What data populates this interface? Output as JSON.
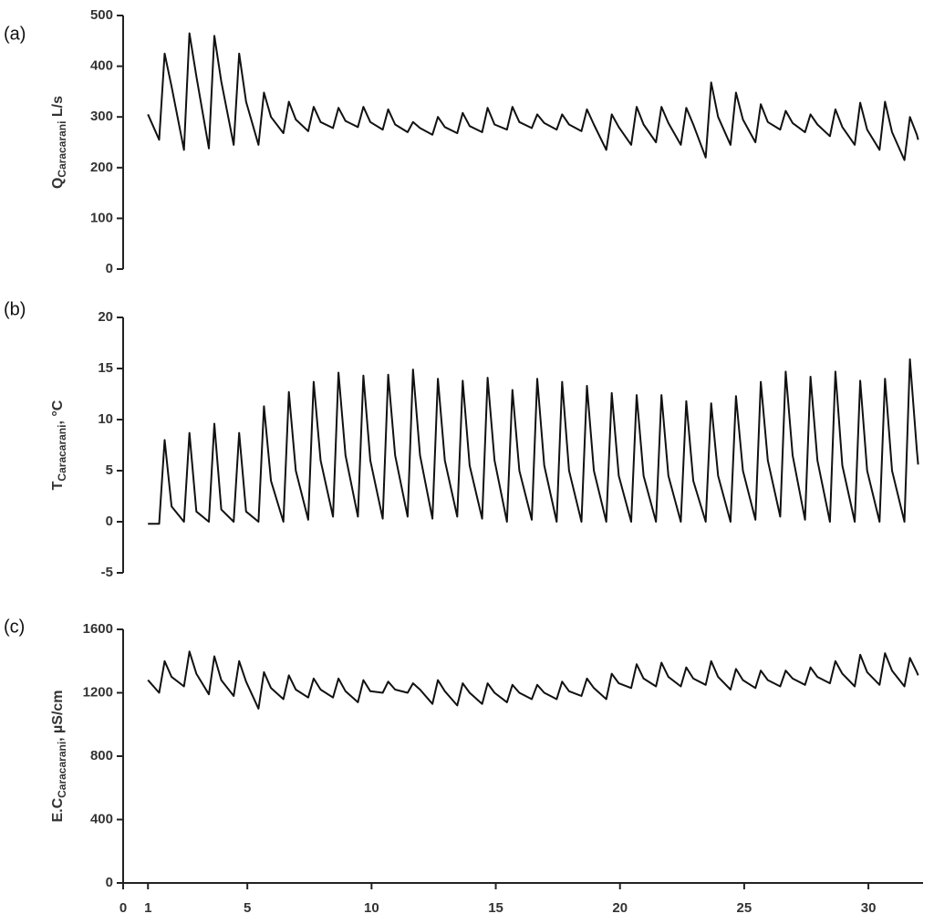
{
  "chart_data": [
    {
      "type": "line",
      "panel_label": "(a)",
      "y_label": {
        "main": "Q",
        "sub": "Caracarani",
        "unit": " L/s"
      },
      "xlim": [
        0,
        32.2
      ],
      "ylim": [
        0,
        500
      ],
      "yticks": [
        0,
        100,
        200,
        300,
        400,
        500
      ],
      "x": [
        1,
        1.45,
        1.67,
        1.95,
        2.45,
        2.67,
        2.95,
        3.45,
        3.67,
        3.95,
        4.45,
        4.67,
        4.95,
        5.45,
        5.67,
        5.95,
        6.45,
        6.67,
        6.95,
        7.45,
        7.67,
        7.95,
        8.45,
        8.67,
        8.95,
        9.45,
        9.67,
        9.95,
        10.45,
        10.67,
        10.95,
        11.45,
        11.67,
        11.95,
        12.45,
        12.67,
        12.95,
        13.45,
        13.67,
        13.95,
        14.45,
        14.67,
        14.95,
        15.45,
        15.67,
        15.95,
        16.45,
        16.67,
        16.95,
        17.45,
        17.67,
        17.95,
        18.45,
        18.67,
        18.95,
        19.45,
        19.67,
        19.95,
        20.45,
        20.67,
        20.95,
        21.45,
        21.67,
        21.95,
        22.45,
        22.67,
        22.95,
        23.45,
        23.67,
        23.95,
        24.45,
        24.67,
        24.95,
        25.45,
        25.67,
        25.95,
        26.45,
        26.67,
        26.95,
        27.45,
        27.67,
        27.95,
        28.45,
        28.67,
        28.95,
        29.45,
        29.67,
        29.95,
        30.45,
        30.67,
        30.95,
        31.45,
        31.67,
        31.95,
        32
      ],
      "series": [
        {
          "color": "#111111",
          "values": [
            305,
            255,
            425,
            360,
            235,
            465,
            380,
            238,
            460,
            370,
            245,
            425,
            330,
            245,
            348,
            300,
            268,
            330,
            295,
            272,
            320,
            290,
            278,
            318,
            292,
            280,
            320,
            290,
            275,
            315,
            285,
            270,
            290,
            278,
            265,
            300,
            280,
            268,
            308,
            282,
            270,
            318,
            285,
            275,
            320,
            290,
            278,
            305,
            288,
            275,
            305,
            285,
            272,
            315,
            285,
            235,
            305,
            280,
            245,
            320,
            285,
            250,
            320,
            288,
            245,
            318,
            285,
            220,
            368,
            300,
            245,
            348,
            295,
            250,
            325,
            290,
            275,
            312,
            288,
            270,
            305,
            285,
            262,
            315,
            280,
            245,
            328,
            275,
            235,
            330,
            270,
            215,
            300,
            265,
            255
          ]
        }
      ]
    },
    {
      "type": "line",
      "panel_label": "(b)",
      "y_label": {
        "main": "T",
        "sub": "Caracarani",
        "unit": ", °C"
      },
      "xlim": [
        0,
        32.2
      ],
      "ylim": [
        -5,
        20
      ],
      "yticks": [
        -5,
        0,
        5,
        10,
        15,
        20
      ],
      "x": [
        1,
        1.45,
        1.67,
        1.95,
        2.45,
        2.67,
        2.95,
        3.45,
        3.67,
        3.95,
        4.45,
        4.67,
        4.95,
        5.45,
        5.67,
        5.95,
        6.45,
        6.67,
        6.95,
        7.45,
        7.67,
        7.95,
        8.45,
        8.67,
        8.95,
        9.45,
        9.67,
        9.95,
        10.45,
        10.67,
        10.95,
        11.45,
        11.67,
        11.95,
        12.45,
        12.67,
        12.95,
        13.45,
        13.67,
        13.95,
        14.45,
        14.67,
        14.95,
        15.45,
        15.67,
        15.95,
        16.45,
        16.67,
        16.95,
        17.45,
        17.67,
        17.95,
        18.45,
        18.67,
        18.95,
        19.45,
        19.67,
        19.95,
        20.45,
        20.67,
        20.95,
        21.45,
        21.67,
        21.95,
        22.45,
        22.67,
        22.95,
        23.45,
        23.67,
        23.95,
        24.45,
        24.67,
        24.95,
        25.45,
        25.67,
        25.95,
        26.45,
        26.67,
        26.95,
        27.45,
        27.67,
        27.95,
        28.45,
        28.67,
        28.95,
        29.45,
        29.67,
        29.95,
        30.45,
        30.67,
        30.95,
        31.45,
        31.67,
        31.95,
        32
      ],
      "series": [
        {
          "color": "#111111",
          "values": [
            -0.2,
            -0.2,
            8,
            1.5,
            0,
            8.7,
            1,
            0,
            9.6,
            1.2,
            0,
            8.7,
            1,
            0,
            11.3,
            4,
            0,
            12.7,
            5,
            0.2,
            13.7,
            6,
            0.5,
            14.6,
            6.5,
            0.5,
            14.3,
            6,
            0.3,
            14.4,
            6.5,
            0.5,
            14.9,
            6.5,
            0.3,
            14,
            6,
            0.5,
            13.8,
            5.5,
            0.3,
            14.1,
            6,
            0,
            12.9,
            5,
            0.2,
            14,
            5.5,
            0,
            13.7,
            5,
            0,
            13.3,
            5,
            0,
            12.6,
            4.5,
            0,
            12.4,
            4.5,
            0,
            12.4,
            4.5,
            0,
            11.8,
            4,
            0,
            11.6,
            4.5,
            0,
            12.3,
            5,
            0.2,
            13.7,
            6,
            0.5,
            14.7,
            6.5,
            0.2,
            14.2,
            6,
            0,
            14.7,
            5.5,
            0,
            13.8,
            5,
            0,
            14,
            5,
            0,
            15.9,
            7,
            5.6
          ]
        }
      ]
    },
    {
      "type": "line",
      "panel_label": "(c)",
      "y_label": {
        "main": "E.C",
        "sub": "Caracarani",
        "unit": ", µS/cm"
      },
      "xlim": [
        0,
        32.2
      ],
      "xticks": [
        0,
        1,
        5,
        10,
        15,
        20,
        25,
        30
      ],
      "ylim": [
        0,
        1600
      ],
      "yticks": [
        0,
        400,
        800,
        1200,
        1600
      ],
      "x": [
        1,
        1.45,
        1.67,
        1.95,
        2.45,
        2.67,
        2.95,
        3.45,
        3.67,
        3.95,
        4.45,
        4.67,
        4.95,
        5.45,
        5.67,
        5.95,
        6.45,
        6.67,
        6.95,
        7.45,
        7.67,
        7.95,
        8.45,
        8.67,
        8.95,
        9.45,
        9.67,
        9.95,
        10.45,
        10.67,
        10.95,
        11.45,
        11.67,
        11.95,
        12.45,
        12.67,
        12.95,
        13.45,
        13.67,
        13.95,
        14.45,
        14.67,
        14.95,
        15.45,
        15.67,
        15.95,
        16.45,
        16.67,
        16.95,
        17.45,
        17.67,
        17.95,
        18.45,
        18.67,
        18.95,
        19.45,
        19.67,
        19.95,
        20.45,
        20.67,
        20.95,
        21.45,
        21.67,
        21.95,
        22.45,
        22.67,
        22.95,
        23.45,
        23.67,
        23.95,
        24.45,
        24.67,
        24.95,
        25.45,
        25.67,
        25.95,
        26.45,
        26.67,
        26.95,
        27.45,
        27.67,
        27.95,
        28.45,
        28.67,
        28.95,
        29.45,
        29.67,
        29.95,
        30.45,
        30.67,
        30.95,
        31.45,
        31.67,
        31.95,
        32
      ],
      "series": [
        {
          "color": "#111111",
          "values": [
            1280,
            1200,
            1400,
            1300,
            1240,
            1460,
            1320,
            1190,
            1430,
            1280,
            1180,
            1400,
            1270,
            1100,
            1330,
            1230,
            1160,
            1310,
            1220,
            1170,
            1290,
            1220,
            1170,
            1290,
            1210,
            1140,
            1280,
            1210,
            1200,
            1270,
            1220,
            1200,
            1260,
            1220,
            1130,
            1280,
            1210,
            1120,
            1260,
            1200,
            1130,
            1260,
            1200,
            1140,
            1250,
            1200,
            1160,
            1250,
            1200,
            1160,
            1270,
            1210,
            1180,
            1290,
            1230,
            1160,
            1320,
            1260,
            1230,
            1380,
            1290,
            1240,
            1390,
            1300,
            1240,
            1360,
            1290,
            1250,
            1400,
            1300,
            1220,
            1350,
            1280,
            1230,
            1340,
            1280,
            1240,
            1340,
            1290,
            1250,
            1360,
            1300,
            1260,
            1400,
            1320,
            1240,
            1440,
            1330,
            1250,
            1450,
            1340,
            1240,
            1420,
            1330,
            1310
          ]
        }
      ]
    }
  ]
}
